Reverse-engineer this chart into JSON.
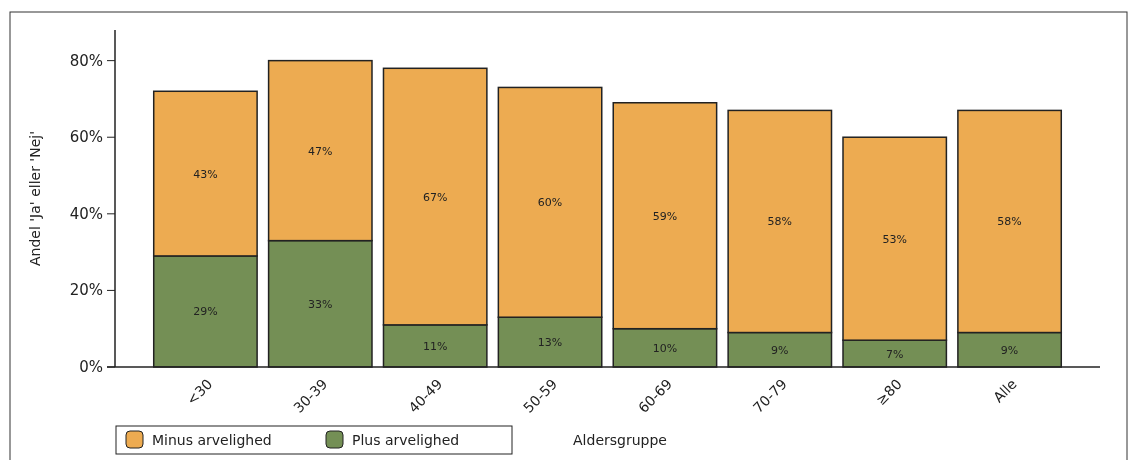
{
  "chart_data": {
    "type": "bar",
    "stacked": true,
    "xlabel": "Aldersgruppe",
    "ylabel": "Andel 'Ja' eller 'Nej'",
    "categories": [
      "<30",
      "30-39",
      "40-49",
      "50-59",
      "60-69",
      "70-79",
      "≥80",
      "Alle"
    ],
    "series": [
      {
        "name": "Plus arvelighed",
        "color": "#748f55",
        "values": [
          29,
          33,
          11,
          13,
          10,
          9,
          7,
          9
        ],
        "value_labels": [
          "29%",
          "33%",
          "11%",
          "13%",
          "10%",
          "9%",
          "7%",
          "9%"
        ]
      },
      {
        "name": "Minus arvelighed",
        "color": "#edab51",
        "values": [
          43,
          47,
          67,
          60,
          59,
          58,
          53,
          58
        ],
        "value_labels": [
          "43%",
          "47%",
          "67%",
          "60%",
          "59%",
          "58%",
          "53%",
          "58%"
        ]
      }
    ],
    "ylim": [
      0,
      88
    ],
    "yticks": [
      {
        "value": 0,
        "label": "0%"
      },
      {
        "value": 20,
        "label": "20%"
      },
      {
        "value": 40,
        "label": "40%"
      },
      {
        "value": 60,
        "label": "60%"
      },
      {
        "value": 80,
        "label": "80%"
      }
    ],
    "legend": "bottom left",
    "grid": false
  }
}
